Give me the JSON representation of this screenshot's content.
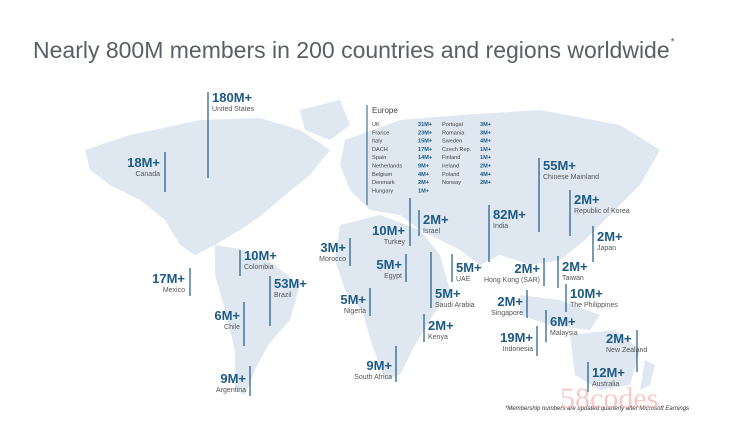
{
  "title": "Nearly 800M members in 200 countries and regions worldwide",
  "title_mark": "*",
  "regions": [
    {
      "value": "180M+",
      "name": "United States"
    },
    {
      "value": "18M+",
      "name": "Canada"
    },
    {
      "value": "17M+",
      "name": "Mexico"
    },
    {
      "value": "10M+",
      "name": "Colombia"
    },
    {
      "value": "53M+",
      "name": "Brazil"
    },
    {
      "value": "6M+",
      "name": "Chile"
    },
    {
      "value": "9M+",
      "name": "Argentina"
    },
    {
      "value": "3M+",
      "name": "Morocco"
    },
    {
      "value": "10M+",
      "name": "Turkey"
    },
    {
      "value": "2M+",
      "name": "Israel"
    },
    {
      "value": "5M+",
      "name": "Egypt"
    },
    {
      "value": "5M+",
      "name": "Nigeria"
    },
    {
      "value": "5M+",
      "name": "Saudi Arabia"
    },
    {
      "value": "5M+",
      "name": "UAE"
    },
    {
      "value": "2M+",
      "name": "Kenya"
    },
    {
      "value": "9M+",
      "name": "South Africa"
    },
    {
      "value": "82M+",
      "name": "India"
    },
    {
      "value": "2M+",
      "name": "Hong Kong (SAR)"
    },
    {
      "value": "2M+",
      "name": "Singapore"
    },
    {
      "value": "19M+",
      "name": "Indonesia"
    },
    {
      "value": "6M+",
      "name": "Malaysia"
    },
    {
      "value": "55M+",
      "name": "Chinese Mainland"
    },
    {
      "value": "2M+",
      "name": "Republic of Korea"
    },
    {
      "value": "2M+",
      "name": "Japan"
    },
    {
      "value": "2M+",
      "name": "Taiwan"
    },
    {
      "value": "10M+",
      "name": "The Philippines"
    },
    {
      "value": "2M+",
      "name": "New Zealand"
    },
    {
      "value": "12M+",
      "name": "Australia"
    }
  ],
  "europe": {
    "title": "Europe",
    "rows": [
      [
        "UK",
        "31M+",
        "Portugal",
        "3M+"
      ],
      [
        "France",
        "23M+",
        "Romania",
        "3M+"
      ],
      [
        "Italy",
        "15M+",
        "Sweden",
        "4M+"
      ],
      [
        "DACH",
        "17M+",
        "Czech Rep.",
        "1M+"
      ],
      [
        "Spain",
        "14M+",
        "Finland",
        "1M+"
      ],
      [
        "Netherlands",
        "9M+",
        "Ireland",
        "2M+"
      ],
      [
        "Belgium",
        "4M+",
        "Poland",
        "4M+"
      ],
      [
        "Denmark",
        "2M+",
        "Norway",
        "2M+"
      ],
      [
        "Hungary",
        "1M+"
      ]
    ]
  },
  "footnote": "*Membership numbers are updated quarterly after Microsoft Earnings",
  "watermark": "58codes"
}
